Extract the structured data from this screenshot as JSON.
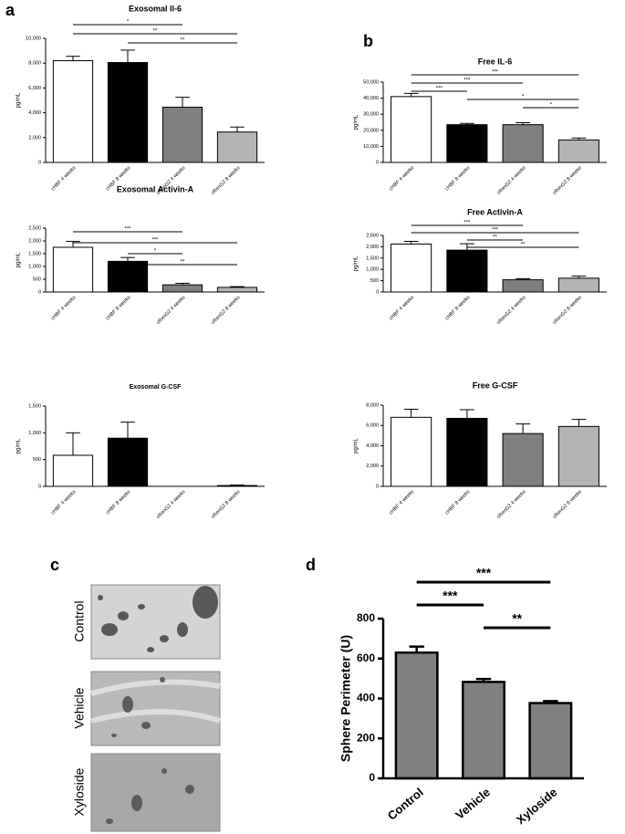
{
  "panel_labels": [
    "a",
    "b",
    "c",
    "d"
  ],
  "images": {
    "labels": [
      "Control",
      "Vehicle",
      "Xyloside"
    ]
  },
  "chart_data": [
    {
      "type": "bar",
      "title": "Exosomal Il-6",
      "y_label": "pg/mL",
      "categories": [
        "cHBF 4 weeks",
        "cHBF 8 weeks",
        "cRenG2 4 weeks",
        "cRenG2 8 weeks"
      ],
      "values": [
        8200,
        8050,
        4450,
        2450
      ],
      "errors": [
        350,
        1000,
        800,
        400
      ],
      "colors": [
        "#ffffff",
        "#000000",
        "#7f7f7f",
        "#b4b4b4"
      ],
      "ylim": [
        0,
        10000
      ],
      "yticks": [
        0,
        {
          "value": 2000,
          "label": "2,000"
        },
        {
          "value": 4000,
          "label": "4,000"
        },
        {
          "value": 6000,
          "label": "6,000"
        },
        {
          "value": 8000,
          "label": "8,000"
        },
        {
          "value": 10000,
          "label": "10,000"
        }
      ],
      "comparisons": [
        {
          "pair": [
            0,
            2
          ],
          "label": "*"
        },
        {
          "pair": [
            0,
            3
          ],
          "label": "**"
        },
        {
          "pair": [
            1,
            3
          ],
          "label": "**"
        }
      ]
    },
    {
      "type": "bar",
      "title": "Exosomal Activin-A",
      "y_label": "pg/mL",
      "categories": [
        "cHBF 4 weeks",
        "cHBF 8 weeks",
        "cRenG2 4 weeks",
        "cRenG2 8 weeks"
      ],
      "values": [
        1750,
        1200,
        280,
        180
      ],
      "errors": [
        230,
        150,
        60,
        30
      ],
      "colors": [
        "#ffffff",
        "#000000",
        "#7f7f7f",
        "#b4b4b4"
      ],
      "ylim": [
        0,
        2500
      ],
      "yticks": [
        0,
        500,
        {
          "value": 1000,
          "label": "1,000"
        },
        {
          "value": 1500,
          "label": "1,500"
        },
        {
          "value": 2000,
          "label": "2,000"
        },
        {
          "value": 2500,
          "label": "2,500"
        }
      ],
      "comparisons": [
        {
          "pair": [
            0,
            2
          ],
          "label": "***"
        },
        {
          "pair": [
            0,
            3
          ],
          "label": "***"
        },
        {
          "pair": [
            1,
            2
          ],
          "label": "*"
        },
        {
          "pair": [
            1,
            3
          ],
          "label": "**"
        }
      ]
    },
    {
      "type": "bar",
      "title": "Exosomal G-CSF",
      "y_label": "pg/mL",
      "categories": [
        "cHBF 4 weeks",
        "cHBF 8 weeks",
        "cRenG2 4 weeks",
        "cRenG2 8 weeks"
      ],
      "values": [
        580,
        900,
        0,
        15
      ],
      "errors": [
        420,
        300,
        0,
        10
      ],
      "colors": [
        "#ffffff",
        "#000000",
        "#7f7f7f",
        "#b4b4b4"
      ],
      "ylim": [
        0,
        1500
      ],
      "yticks": [
        0,
        500,
        {
          "value": 1000,
          "label": "1,000"
        },
        {
          "value": 1500,
          "label": "1,500"
        }
      ],
      "comparisons": []
    },
    {
      "type": "bar",
      "title": "Free IL-6",
      "y_label": "pg/mL",
      "categories": [
        "cHBF 4 weeks",
        "cHBF 8 weeks",
        "cRenG2 4 weeks",
        "cRenG2 8 weeks"
      ],
      "values": [
        41000,
        23500,
        23500,
        14000
      ],
      "errors": [
        2000,
        800,
        1200,
        1200
      ],
      "colors": [
        "#ffffff",
        "#000000",
        "#7f7f7f",
        "#b4b4b4"
      ],
      "ylim": [
        0,
        50000
      ],
      "yticks": [
        0,
        {
          "value": 10000,
          "label": "10,000"
        },
        {
          "value": 20000,
          "label": "20,000"
        },
        {
          "value": 30000,
          "label": "30,000"
        },
        {
          "value": 40000,
          "label": "40,000"
        },
        {
          "value": 50000,
          "label": "50,000"
        }
      ],
      "comparisons": [
        {
          "pair": [
            0,
            3
          ],
          "label": "***"
        },
        {
          "pair": [
            0,
            2
          ],
          "label": "***"
        },
        {
          "pair": [
            0,
            1
          ],
          "label": "***"
        },
        {
          "pair": [
            1,
            3
          ],
          "label": "*"
        },
        {
          "pair": [
            2,
            3
          ],
          "label": "*"
        }
      ]
    },
    {
      "type": "bar",
      "title": "Free Activin-A",
      "y_label": "pg/mL",
      "categories": [
        "cHBF 4 weeks",
        "cHBF 8 weeks",
        "cRenG2 4 weeks",
        "cRenG2 8 weeks"
      ],
      "values": [
        2120,
        1850,
        540,
        610
      ],
      "errors": [
        120,
        280,
        50,
        90
      ],
      "colors": [
        "#ffffff",
        "#000000",
        "#7f7f7f",
        "#b4b4b4"
      ],
      "ylim": [
        0,
        2500
      ],
      "yticks": [
        0,
        500,
        {
          "value": 1000,
          "label": "1,000"
        },
        {
          "value": 1500,
          "label": "1,500"
        },
        {
          "value": 2000,
          "label": "2,000"
        },
        {
          "value": 2500,
          "label": "2,500"
        }
      ],
      "comparisons": [
        {
          "pair": [
            0,
            2
          ],
          "label": "***"
        },
        {
          "pair": [
            0,
            3
          ],
          "label": "***"
        },
        {
          "pair": [
            1,
            2
          ],
          "label": "**"
        },
        {
          "pair": [
            1,
            3
          ],
          "label": "**"
        }
      ]
    },
    {
      "type": "bar",
      "title": "Free G-CSF",
      "y_label": "pg/mL",
      "categories": [
        "cHBF 4 weeks",
        "cHBF 8 weeks",
        "cRenG2 4 weeks",
        "cRenG2 8 weeks"
      ],
      "values": [
        6800,
        6700,
        5200,
        5900
      ],
      "errors": [
        800,
        850,
        950,
        700
      ],
      "colors": [
        "#ffffff",
        "#000000",
        "#7f7f7f",
        "#b4b4b4"
      ],
      "ylim": [
        0,
        8000
      ],
      "yticks": [
        0,
        {
          "value": 2000,
          "label": "2,000"
        },
        {
          "value": 4000,
          "label": "4,000"
        },
        {
          "value": 6000,
          "label": "6,000"
        },
        {
          "value": 8000,
          "label": "8,000"
        }
      ],
      "comparisons": []
    },
    {
      "type": "bar",
      "y_label": "Sphere Perimeter (U)",
      "categories": [
        "Control",
        "Vehicle",
        "Xyloside"
      ],
      "values": [
        630,
        483,
        377
      ],
      "errors": [
        30,
        15,
        10
      ],
      "colors": [
        "#808080",
        "#808080",
        "#808080"
      ],
      "ylim": [
        0,
        800
      ],
      "yticks": [
        0,
        200,
        400,
        600,
        800
      ],
      "comparisons": [
        {
          "pair": [
            0,
            2
          ],
          "label": "***"
        },
        {
          "pair": [
            0,
            1
          ],
          "label": "***"
        },
        {
          "pair": [
            1,
            2
          ],
          "label": "**"
        }
      ]
    }
  ]
}
